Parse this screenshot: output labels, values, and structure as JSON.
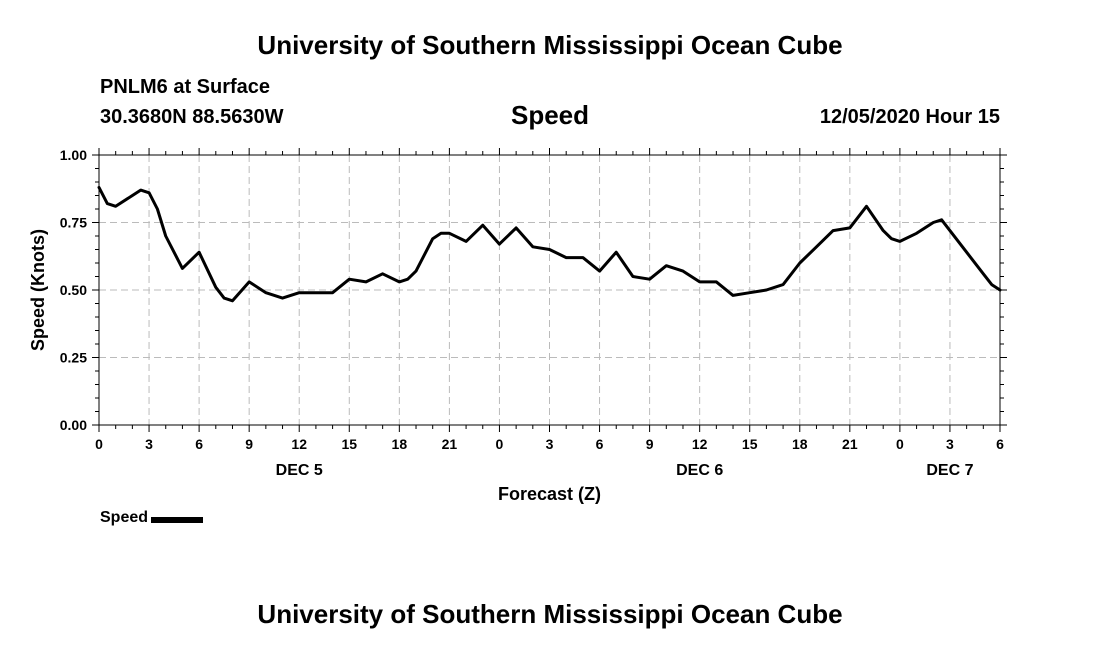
{
  "header": {
    "title_top": "University of Southern Mississippi Ocean Cube",
    "station": "PNLM6 at Surface",
    "coords": "30.3680N 88.5630W",
    "chart_title": "Speed",
    "datetime": "12/05/2020 Hour 15",
    "title_bottom": "University of Southern Mississippi Ocean Cube"
  },
  "legend": {
    "label": "Speed"
  },
  "chart_data": {
    "type": "line",
    "title": "Speed",
    "xlabel": "Forecast (Z)",
    "ylabel": "Speed (Knots)",
    "ylim": [
      0,
      1
    ],
    "xlim_hours": [
      0,
      54
    ],
    "grid": true,
    "y_ticks": [
      "0.00",
      "0.25",
      "0.50",
      "0.75",
      "1.00"
    ],
    "x_tick_labels": [
      "0",
      "3",
      "6",
      "9",
      "12",
      "15",
      "18",
      "21",
      "0",
      "3",
      "6",
      "9",
      "12",
      "15",
      "18",
      "21",
      "0",
      "3",
      "6"
    ],
    "day_labels": [
      "DEC 5",
      "DEC 6",
      "DEC 7"
    ],
    "series": [
      {
        "name": "Speed",
        "color": "#000000",
        "x": [
          0,
          0.5,
          1,
          2,
          2.5,
          3,
          3.5,
          4,
          5,
          6,
          7,
          7.5,
          8,
          9,
          10,
          11,
          12,
          13,
          14,
          15,
          16,
          17,
          18,
          18.5,
          19,
          20,
          20.5,
          21,
          22,
          23,
          24,
          25,
          26,
          27,
          28,
          29,
          30,
          31,
          32,
          33,
          34,
          35,
          36,
          37,
          38,
          39,
          40,
          41,
          42,
          43,
          44,
          45,
          45.5,
          46,
          47,
          47.5,
          48,
          49,
          50,
          50.5,
          51,
          52,
          53,
          53.5,
          54
        ],
        "y": [
          0.88,
          0.82,
          0.81,
          0.85,
          0.87,
          0.86,
          0.8,
          0.7,
          0.58,
          0.64,
          0.51,
          0.47,
          0.46,
          0.53,
          0.49,
          0.47,
          0.49,
          0.49,
          0.49,
          0.54,
          0.53,
          0.56,
          0.53,
          0.54,
          0.57,
          0.69,
          0.71,
          0.71,
          0.68,
          0.74,
          0.67,
          0.73,
          0.66,
          0.65,
          0.62,
          0.62,
          0.57,
          0.64,
          0.55,
          0.54,
          0.59,
          0.57,
          0.53,
          0.53,
          0.48,
          0.49,
          0.5,
          0.52,
          0.6,
          0.66,
          0.72,
          0.73,
          0.77,
          0.81,
          0.72,
          0.69,
          0.68,
          0.71,
          0.75,
          0.76,
          0.72,
          0.64,
          0.56,
          0.52,
          0.5
        ]
      }
    ]
  }
}
